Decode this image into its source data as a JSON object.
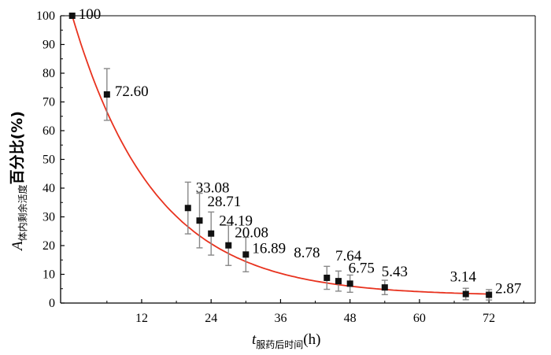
{
  "chart_data": {
    "type": "scatter",
    "x": [
      0,
      6,
      20,
      22,
      24,
      27,
      30,
      44,
      46,
      48,
      54,
      68,
      72
    ],
    "y": [
      100,
      72.6,
      33.08,
      28.71,
      24.19,
      20.08,
      16.89,
      8.78,
      7.64,
      6.75,
      5.43,
      3.14,
      2.87
    ],
    "error": [
      0,
      9,
      9,
      9.5,
      7.5,
      7,
      6,
      4,
      3.5,
      3,
      2.5,
      2,
      1.8
    ],
    "labels": [
      "100",
      "72.60",
      "33.08",
      "28.71",
      "24.19",
      "20.08",
      "16.89",
      "8.78",
      "7.64",
      "6.75",
      "5.43",
      "3.14",
      "2.87"
    ],
    "fit": "exponential decay curve",
    "xlim": [
      -2,
      80
    ],
    "ylim": [
      0,
      100
    ],
    "xticks": [
      "12",
      "24",
      "36",
      "48",
      "60",
      "72"
    ],
    "yticks": [
      "0",
      "10",
      "20",
      "30",
      "40",
      "50",
      "60",
      "70",
      "80",
      "90",
      "100"
    ],
    "ylabel": {
      "main": "A",
      "sub": "体内剩余活度",
      "tail": "百分比(%)"
    },
    "xlabel": {
      "main": "t",
      "sub": "服药后时间",
      "tail": "(h)"
    },
    "colors": {
      "fit_line": "#e8321e",
      "marker": "#111111",
      "error_bar": "#888888"
    }
  }
}
